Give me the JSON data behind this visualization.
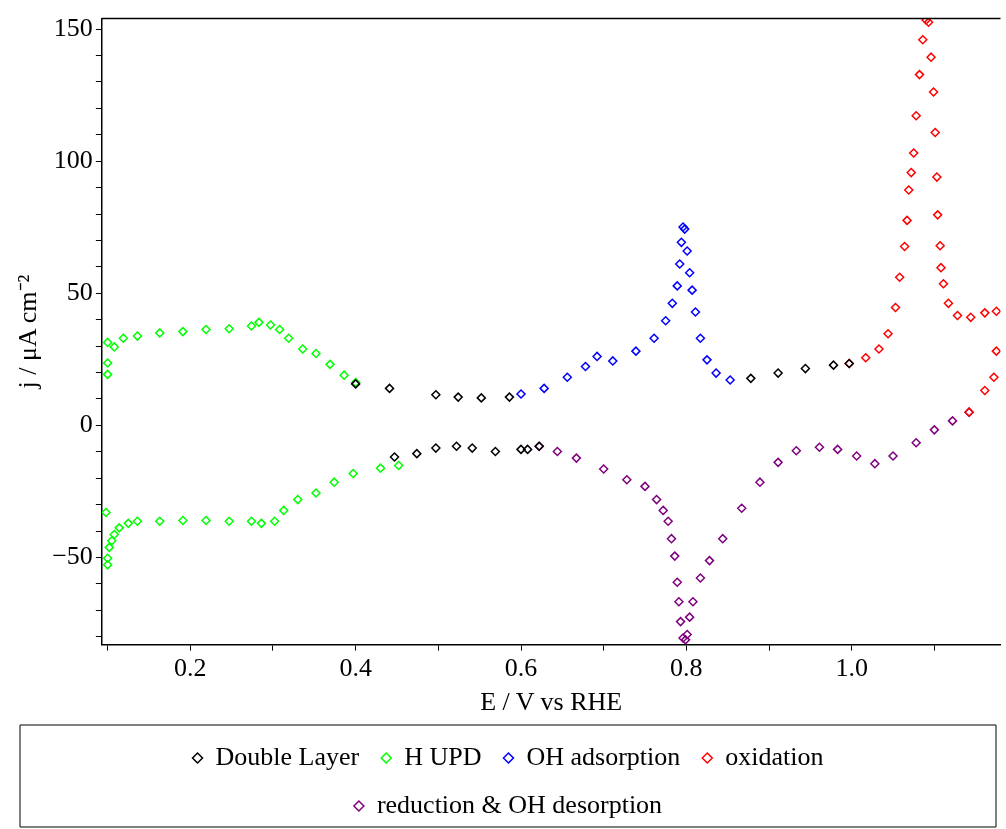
{
  "chart_data": {
    "type": "scatter",
    "xlabel": "E / V vs RHE",
    "ylabel": "j / μA cm⁻²",
    "marker": "diamond",
    "legend": "bottom",
    "grid": false,
    "xlim": [
      0.093,
      1.18
    ],
    "ylim": [
      -83,
      154
    ],
    "xticks": [
      {
        "value": 0.1,
        "label": null
      },
      0.2,
      {
        "value": 0.3,
        "label": null
      },
      0.4,
      {
        "value": 0.5,
        "label": null
      },
      0.6,
      {
        "value": 0.7,
        "label": null
      },
      0.8,
      {
        "value": 0.9,
        "label": null
      },
      {
        "value": 1.0,
        "label": "1.0"
      },
      {
        "value": 1.1,
        "label": null
      }
    ],
    "yticks": [
      {
        "value": -80,
        "label": null
      },
      {
        "value": -70,
        "label": null
      },
      {
        "value": -60,
        "label": null
      },
      {
        "value": -50,
        "label": "−50"
      },
      {
        "value": -40,
        "label": null
      },
      {
        "value": -30,
        "label": null
      },
      {
        "value": -20,
        "label": null
      },
      {
        "value": -10,
        "label": null
      },
      0,
      {
        "value": 10,
        "label": null
      },
      {
        "value": 20,
        "label": null
      },
      {
        "value": 30,
        "label": null
      },
      {
        "value": 40,
        "label": null
      },
      50,
      {
        "value": 60,
        "label": null
      },
      {
        "value": 70,
        "label": null
      },
      {
        "value": 80,
        "label": null
      },
      {
        "value": 90,
        "label": null
      },
      100,
      {
        "value": 110,
        "label": null
      },
      {
        "value": 120,
        "label": null
      },
      {
        "value": 130,
        "label": null
      },
      {
        "value": 140,
        "label": null
      },
      150
    ],
    "series": [
      {
        "name": "Double Layer",
        "color": "#000000",
        "x": [
          0.4,
          0.441,
          0.497,
          0.524,
          0.552,
          0.586,
          0.878,
          0.911,
          0.944,
          0.978,
          0.997,
          0.447,
          0.474,
          0.497,
          0.522,
          0.541,
          0.569,
          0.6,
          0.608,
          0.622
        ],
        "values": [
          15.7,
          14,
          11.6,
          10.7,
          10.4,
          10.7,
          17.8,
          19.8,
          21.5,
          22.8,
          23.4,
          -12,
          -10.7,
          -8.6,
          -7.9,
          -8.6,
          -9.9,
          -9.1,
          -9.1,
          -7.9
        ]
      },
      {
        "name": "H UPD",
        "color": "#00ff00",
        "x": [
          0.1,
          0.1,
          0.1,
          0.108,
          0.119,
          0.136,
          0.163,
          0.191,
          0.219,
          0.247,
          0.274,
          0.283,
          0.297,
          0.308,
          0.319,
          0.336,
          0.352,
          0.369,
          0.386,
          0.4,
          0.452,
          0.43,
          0.397,
          0.374,
          0.352,
          0.33,
          0.313,
          0.302,
          0.286,
          0.274,
          0.247,
          0.219,
          0.191,
          0.163,
          0.136,
          0.125,
          0.114,
          0.108,
          0.105,
          0.102,
          0.1,
          0.1,
          0.098
        ],
        "values": [
          19.3,
          23.6,
          31.4,
          29.7,
          33,
          33.8,
          35,
          35.5,
          36.3,
          36.6,
          37.6,
          39,
          38,
          36.3,
          33,
          28.9,
          27.2,
          23.1,
          19,
          16.2,
          -15.2,
          -16.2,
          -18.2,
          -21.5,
          -25.6,
          -28.1,
          -32.2,
          -36.3,
          -37.1,
          -36.3,
          -36.3,
          -36,
          -36,
          -36.3,
          -36.3,
          -37.1,
          -38.8,
          -41.3,
          -43.7,
          -46.2,
          -50.3,
          -52.8,
          -33
        ]
      },
      {
        "name": "OH adsorption",
        "color": "#0000ff",
        "x": [
          0.6,
          0.628,
          0.656,
          0.678,
          0.692,
          0.711,
          0.739,
          0.761,
          0.775,
          0.783,
          0.789,
          0.792,
          0.794,
          0.796,
          0.798,
          0.801,
          0.804,
          0.807,
          0.811,
          0.817,
          0.825,
          0.836,
          0.853
        ],
        "values": [
          11.9,
          14,
          18.2,
          22.3,
          26.1,
          24.4,
          28.1,
          33,
          39.6,
          46.2,
          52.8,
          61.1,
          69.3,
          75.1,
          74.3,
          66,
          57.8,
          51.2,
          42.9,
          33,
          24.8,
          19.8,
          17.2
        ]
      },
      {
        "name": "oxidation",
        "color": "#ff0000",
        "x": [
          0.997,
          1.017,
          1.033,
          1.044,
          1.053,
          1.058,
          1.064,
          1.067,
          1.069,
          1.072,
          1.075,
          1.078,
          1.082,
          1.086,
          1.09,
          1.093,
          1.096,
          1.099,
          1.101,
          1.103,
          1.104,
          1.107,
          1.108,
          1.111,
          1.117,
          1.128,
          1.144,
          1.161,
          1.175,
          1.175,
          1.172,
          1.161,
          1.142
        ],
        "values": [
          23.4,
          25.6,
          28.9,
          34.7,
          44.6,
          56.1,
          67.7,
          77.6,
          89.1,
          95.7,
          103.1,
          117.2,
          132.8,
          146,
          153.5,
          152.6,
          139.4,
          126.2,
          110.9,
          94,
          79.7,
          68,
          59.7,
          53.6,
          46.2,
          41.6,
          40.9,
          42.6,
          43.2,
          28.1,
          18.2,
          13.2,
          5
        ]
      },
      {
        "name": "reduction & OH desorption",
        "color": "#7f007f",
        "x": [
          1.142,
          1.122,
          1.1,
          1.078,
          1.05,
          1.028,
          1.006,
          0.983,
          0.961,
          0.933,
          0.911,
          0.889,
          0.867,
          0.844,
          0.828,
          0.817,
          0.808,
          0.804,
          0.801,
          0.799,
          0.796,
          0.793,
          0.791,
          0.789,
          0.786,
          0.782,
          0.778,
          0.772,
          0.764,
          0.75,
          0.728,
          0.7,
          0.667,
          0.644,
          0.622
        ],
        "values": [
          5,
          1.7,
          -1.7,
          -6.6,
          -11.6,
          -14.5,
          -11.6,
          -9.1,
          -8.3,
          -9.6,
          -14,
          -21.5,
          -31.4,
          -42.9,
          -51.2,
          -57.8,
          -66.8,
          -72.6,
          -79.2,
          -81.2,
          -80.5,
          -74.3,
          -66.8,
          -59.4,
          -49.5,
          -42.9,
          -36.3,
          -32.2,
          -28.1,
          -23.1,
          -20.6,
          -16.5,
          -12.4,
          -9.9,
          -7.9
        ]
      }
    ]
  }
}
